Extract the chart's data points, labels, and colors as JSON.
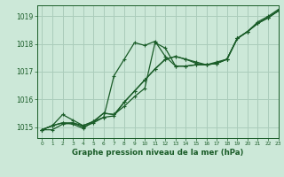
{
  "background_color": "#cce8d8",
  "grid_color": "#aaccbb",
  "line_color": "#1a5c28",
  "title": "Graphe pression niveau de la mer (hPa)",
  "xlim": [
    -0.5,
    23
  ],
  "ylim": [
    1014.6,
    1019.4
  ],
  "yticks": [
    1015,
    1016,
    1017,
    1018,
    1019
  ],
  "xticks": [
    0,
    1,
    2,
    3,
    4,
    5,
    6,
    7,
    8,
    9,
    10,
    11,
    12,
    13,
    14,
    15,
    16,
    17,
    18,
    19,
    20,
    21,
    22,
    23
  ],
  "series": [
    [
      1014.9,
      1014.9,
      1015.1,
      1015.15,
      1015.0,
      1015.15,
      1015.35,
      1015.4,
      1015.9,
      1016.3,
      1016.7,
      1017.1,
      1017.45,
      1017.55,
      1017.45,
      1017.3,
      1017.25,
      1017.3,
      1017.45,
      1018.2,
      1018.45,
      1018.75,
      1018.95,
      1019.2
    ],
    [
      1014.9,
      1015.05,
      1015.15,
      1015.1,
      1014.95,
      1015.2,
      1015.35,
      1016.85,
      1017.45,
      1018.05,
      1017.95,
      1018.1,
      1017.55,
      1017.2,
      1017.2,
      1017.25,
      1017.25,
      1017.3,
      1017.45,
      1018.2,
      1018.45,
      1018.75,
      1018.95,
      1019.2
    ],
    [
      1014.9,
      1015.05,
      1015.45,
      1015.25,
      1015.05,
      1015.2,
      1015.5,
      1015.45,
      1015.75,
      1016.1,
      1016.4,
      1018.05,
      1017.85,
      1017.2,
      1017.2,
      1017.25,
      1017.25,
      1017.3,
      1017.45,
      1018.2,
      1018.45,
      1018.75,
      1018.95,
      1019.2
    ],
    [
      1014.9,
      1015.05,
      1015.15,
      1015.15,
      1015.05,
      1015.2,
      1015.5,
      1015.45,
      1015.9,
      1016.3,
      1016.7,
      1017.1,
      1017.45,
      1017.55,
      1017.45,
      1017.35,
      1017.25,
      1017.35,
      1017.45,
      1018.2,
      1018.45,
      1018.8,
      1019.0,
      1019.25
    ]
  ]
}
